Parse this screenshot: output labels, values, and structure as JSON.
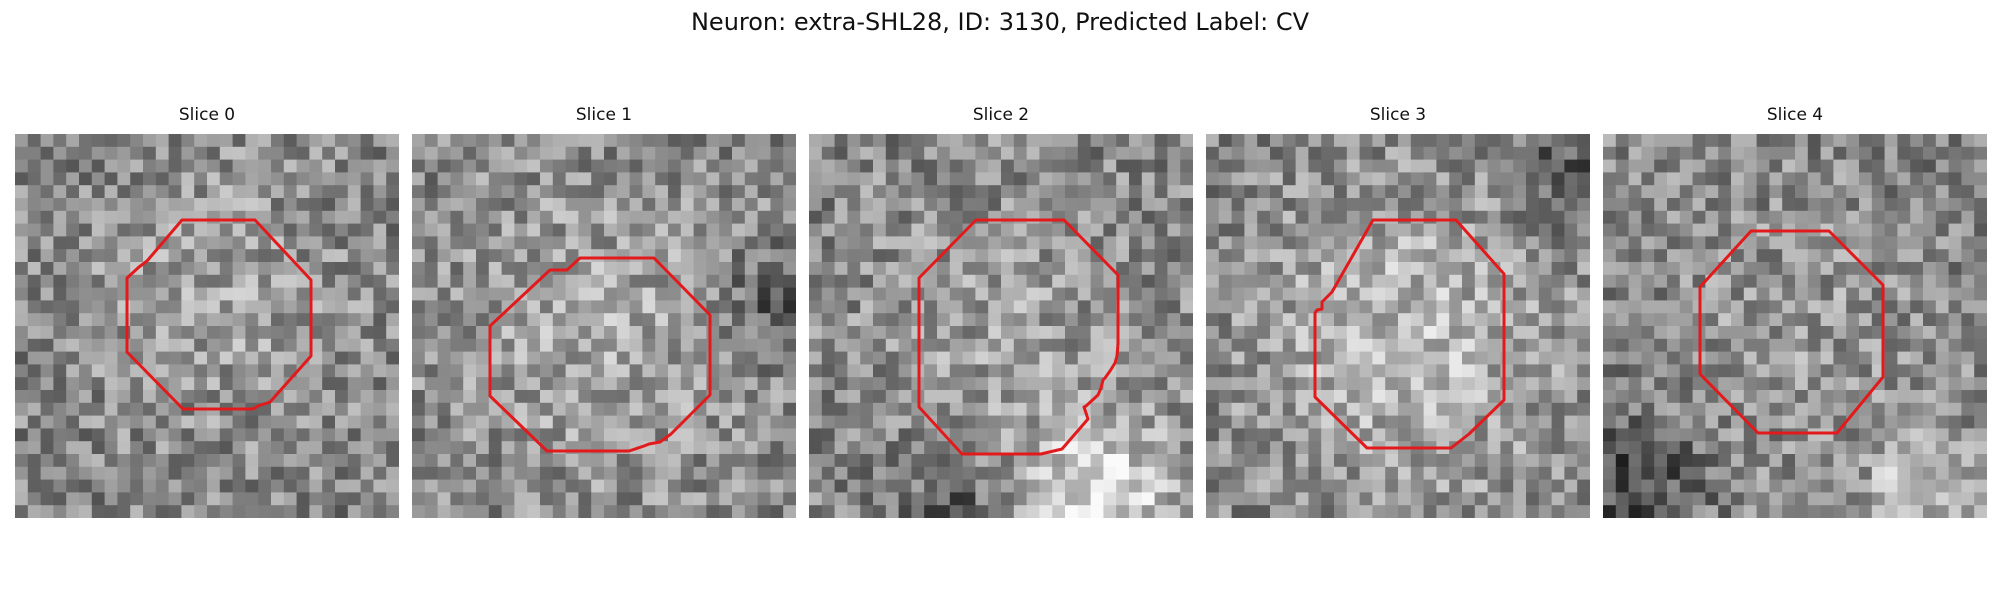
{
  "title": "Neuron: extra-SHL28, ID: 3130, Predicted Label: CV",
  "slices": [
    {
      "label": "Slice 0"
    },
    {
      "label": "Slice 1"
    },
    {
      "label": "Slice 2"
    },
    {
      "label": "Slice 3"
    },
    {
      "label": "Slice 4"
    }
  ],
  "colors": {
    "contour": "#e31a1c",
    "background": "#ffffff",
    "text": "#111111"
  }
}
